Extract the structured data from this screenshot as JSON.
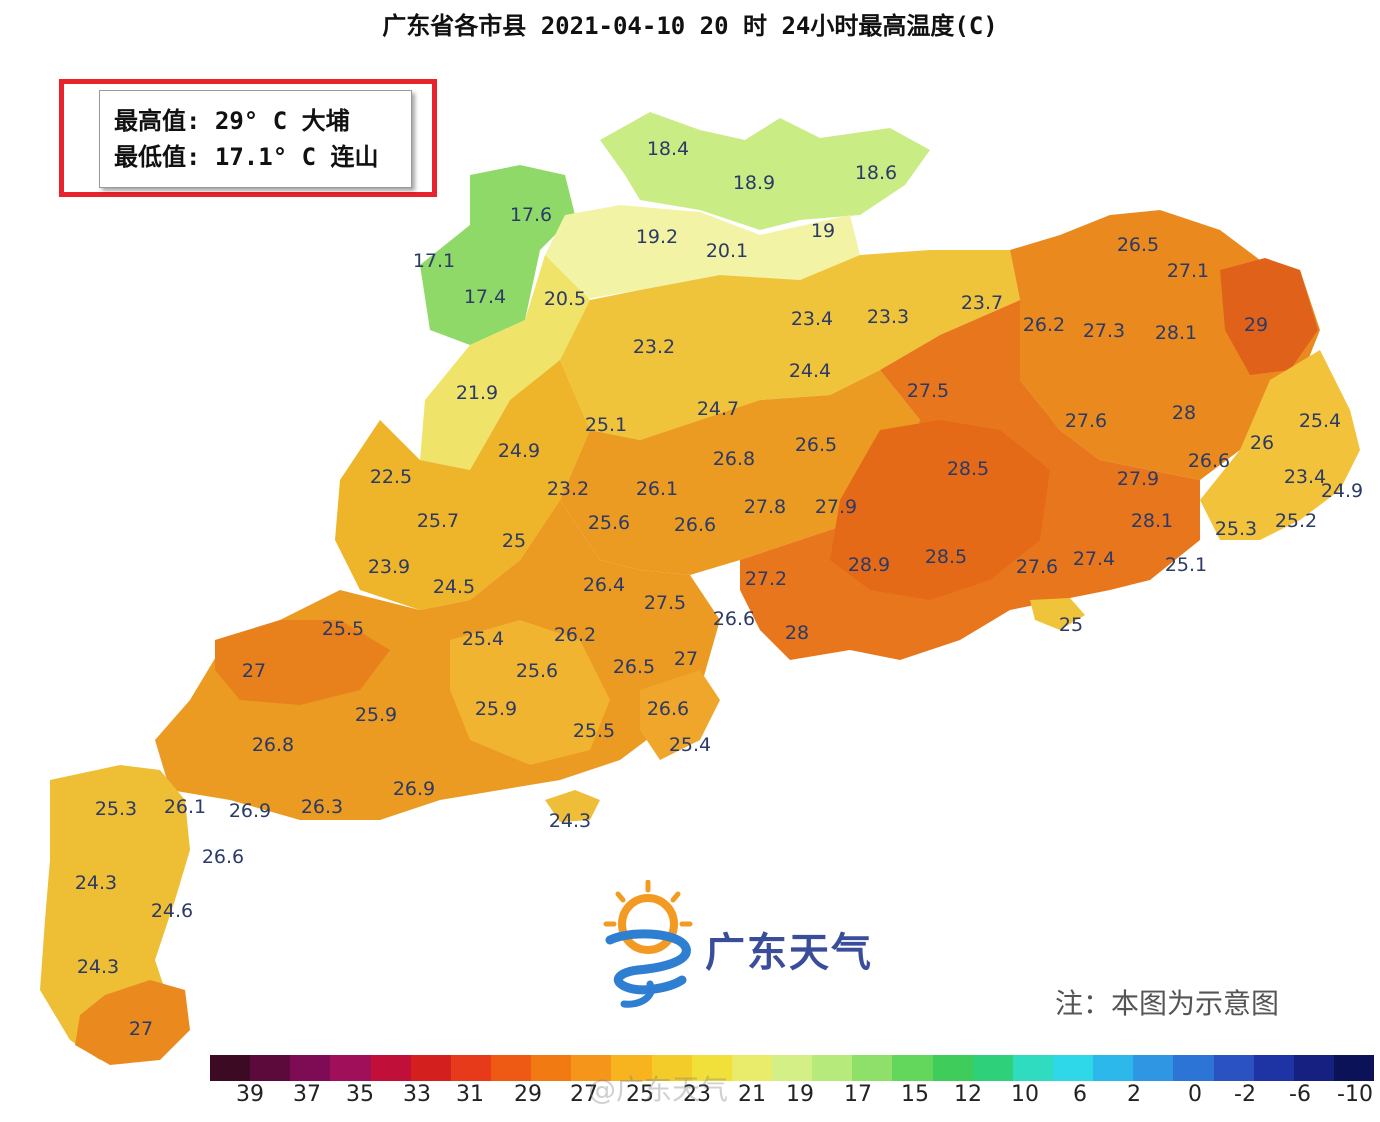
{
  "title": "广东省各市县 2021-04-10 20 时 24小时最高温度(C)",
  "stats": {
    "max_line": "最高值: 29° C 大埔",
    "min_line": "最低值: 17.1° C 连山"
  },
  "logo_text": "广东天气",
  "note": "注：本图为示意图",
  "watermark": "@广东天气",
  "colors": {
    "highlight_border": "#e8232a",
    "value_text": "#2b3a66",
    "logo_blue": "#3a4d9a",
    "logo_orange": "#f29a21"
  },
  "temperature_labels": [
    {
      "value": "18.4"
    },
    {
      "value": "18.9"
    },
    {
      "value": "18.6"
    },
    {
      "value": "17.6"
    },
    {
      "value": "17.1"
    },
    {
      "value": "19.2"
    },
    {
      "value": "20.1"
    },
    {
      "value": "19"
    },
    {
      "value": "17.4"
    },
    {
      "value": "20.5"
    },
    {
      "value": "26.5"
    },
    {
      "value": "27.1"
    },
    {
      "value": "23.4"
    },
    {
      "value": "23.3"
    },
    {
      "value": "23.7"
    },
    {
      "value": "26.2"
    },
    {
      "value": "27.3"
    },
    {
      "value": "28.1"
    },
    {
      "value": "29"
    },
    {
      "value": "23.2"
    },
    {
      "value": "24.4"
    },
    {
      "value": "21.9"
    },
    {
      "value": "27.5"
    },
    {
      "value": "25.1"
    },
    {
      "value": "24.7"
    },
    {
      "value": "27.6"
    },
    {
      "value": "28"
    },
    {
      "value": "25.4"
    },
    {
      "value": "24.9"
    },
    {
      "value": "26.5"
    },
    {
      "value": "26.8"
    },
    {
      "value": "26"
    },
    {
      "value": "28.5"
    },
    {
      "value": "26.6"
    },
    {
      "value": "22.5"
    },
    {
      "value": "27.9"
    },
    {
      "value": "23.4"
    },
    {
      "value": "24.9"
    },
    {
      "value": "23.2"
    },
    {
      "value": "26.1"
    },
    {
      "value": "25.7"
    },
    {
      "value": "25.6"
    },
    {
      "value": "26.6"
    },
    {
      "value": "27.8"
    },
    {
      "value": "27.9"
    },
    {
      "value": "28.1"
    },
    {
      "value": "25.3"
    },
    {
      "value": "25.2"
    },
    {
      "value": "25"
    },
    {
      "value": "23.9"
    },
    {
      "value": "24.5"
    },
    {
      "value": "26.4"
    },
    {
      "value": "27.2"
    },
    {
      "value": "28.9"
    },
    {
      "value": "28.5"
    },
    {
      "value": "27.6"
    },
    {
      "value": "27.4"
    },
    {
      "value": "25.1"
    },
    {
      "value": "27.5"
    },
    {
      "value": "26.6"
    },
    {
      "value": "25.5"
    },
    {
      "value": "25.4"
    },
    {
      "value": "26.2"
    },
    {
      "value": "28"
    },
    {
      "value": "25"
    },
    {
      "value": "27"
    },
    {
      "value": "25.6"
    },
    {
      "value": "26.5"
    },
    {
      "value": "27"
    },
    {
      "value": "25.9"
    },
    {
      "value": "26.6"
    },
    {
      "value": "25.9"
    },
    {
      "value": "25.5"
    },
    {
      "value": "26.8"
    },
    {
      "value": "25.4"
    },
    {
      "value": "26.9"
    },
    {
      "value": "25.3"
    },
    {
      "value": "26.1"
    },
    {
      "value": "26.9"
    },
    {
      "value": "26.3"
    },
    {
      "value": "24.3"
    },
    {
      "value": "26.6"
    },
    {
      "value": "24.3"
    },
    {
      "value": "24.6"
    },
    {
      "value": "24.3"
    },
    {
      "value": "27"
    }
  ],
  "legend": {
    "colors": [
      "#3d0a24",
      "#5c0a3c",
      "#7d0c55",
      "#a0105a",
      "#c0103a",
      "#d41f1f",
      "#e63a1a",
      "#ee5a14",
      "#f27a12",
      "#f5961a",
      "#f7b41e",
      "#f4cc2a",
      "#f1e03a",
      "#e8ec6a",
      "#d4ef86",
      "#b6ea7a",
      "#8ee06a",
      "#63d65c",
      "#3fcc5a",
      "#2ed07a",
      "#30dcc0",
      "#2ed8e8",
      "#2cb8ea",
      "#2e96e2",
      "#2c74d6",
      "#2a52c2",
      "#1e34a4",
      "#152080",
      "#0c1258"
    ],
    "labels": [
      "39",
      "37",
      "35",
      "33",
      "31",
      "29",
      "27",
      "25",
      "23",
      "21",
      "19",
      "17",
      "15",
      "12",
      "10",
      "6",
      "2",
      "0",
      "-2",
      "-6",
      "-10"
    ]
  }
}
